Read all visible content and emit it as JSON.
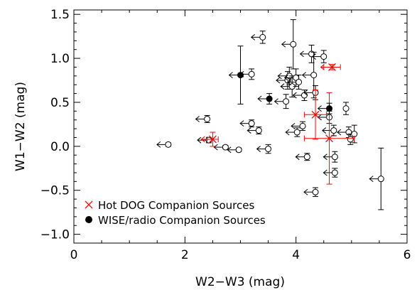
{
  "chart_data": {
    "type": "scatter",
    "xlabel": "W2−W3 (mag)",
    "ylabel": "W1−W2 (mag)",
    "xlim": [
      0,
      6
    ],
    "ylim": [
      -1.1,
      1.55
    ],
    "x_ticks": [
      0,
      2,
      4,
      6
    ],
    "y_ticks": [
      -1.0,
      -0.5,
      0.0,
      0.5,
      1.0,
      1.5
    ],
    "x_tick_labels": [
      "0",
      "2",
      "4",
      "6"
    ],
    "y_tick_labels": [
      "−1.0",
      "−0.5",
      "0.0",
      "0.5",
      "1.0",
      "1.5"
    ],
    "grid": false,
    "legend_position": "bottom-left",
    "colors": {
      "hot_dog": "#ff0000",
      "wise_radio": "#000000",
      "background": "#000000"
    },
    "series": [
      {
        "name": "",
        "marker": "open-circle",
        "points": [
          {
            "x": 1.7,
            "y": 0.02,
            "yerr": 0.02,
            "upper_limit": true
          },
          {
            "x": 2.43,
            "y": 0.07,
            "yerr": 0.03,
            "upper_limit": true
          },
          {
            "x": 2.4,
            "y": 0.31,
            "yerr": 0.04,
            "upper_limit": true
          },
          {
            "x": 2.73,
            "y": -0.01,
            "yerr": 0.02,
            "upper_limit": true
          },
          {
            "x": 2.97,
            "y": -0.04,
            "yerr": 0.02,
            "upper_limit": true
          },
          {
            "x": 3.2,
            "y": 0.82,
            "yerr": 0.06,
            "upper_limit": true
          },
          {
            "x": 3.2,
            "y": 0.26,
            "yerr": 0.04,
            "upper_limit": true
          },
          {
            "x": 3.33,
            "y": 0.18,
            "yerr": 0.04,
            "upper_limit": true
          },
          {
            "x": 3.4,
            "y": 1.24,
            "yerr": 0.07,
            "upper_limit": true
          },
          {
            "x": 3.5,
            "y": -0.03,
            "yerr": 0.05,
            "upper_limit": true
          },
          {
            "x": 3.82,
            "y": 0.51,
            "yerr": 0.08,
            "upper_limit": true
          },
          {
            "x": 3.85,
            "y": 0.75,
            "yerr": 0.1,
            "upper_limit": true
          },
          {
            "x": 3.88,
            "y": 0.8,
            "yerr": 0.1,
            "upper_limit": true
          },
          {
            "x": 3.93,
            "y": 0.68,
            "yerr": 0.12,
            "upper_limit": true
          },
          {
            "x": 3.95,
            "y": 1.16,
            "yerr": 0.28,
            "upper_limit": true
          },
          {
            "x": 4.0,
            "y": 0.78,
            "yerr": 0.1,
            "upper_limit": true
          },
          {
            "x": 4.05,
            "y": 0.73,
            "yerr": 0.08,
            "upper_limit": true
          },
          {
            "x": 4.02,
            "y": 0.16,
            "yerr": 0.05,
            "upper_limit": true
          },
          {
            "x": 4.12,
            "y": 0.23,
            "yerr": 0.05,
            "upper_limit": true
          },
          {
            "x": 4.15,
            "y": 0.58,
            "yerr": 0.06,
            "upper_limit": true
          },
          {
            "x": 4.2,
            "y": -0.12,
            "yerr": 0.04,
            "upper_limit": true
          },
          {
            "x": 4.28,
            "y": 1.05,
            "yerr": 0.1,
            "upper_limit": true
          },
          {
            "x": 4.32,
            "y": 0.81,
            "yerr": 0.26,
            "upper_limit": true
          },
          {
            "x": 4.35,
            "y": 0.61,
            "yerr": 0.08,
            "upper_limit": true
          },
          {
            "x": 4.35,
            "y": -0.52,
            "yerr": 0.05,
            "upper_limit": true
          },
          {
            "x": 4.5,
            "y": 1.02,
            "yerr": 0.07,
            "upper_limit": true
          },
          {
            "x": 4.6,
            "y": 0.33,
            "yerr": 0.07,
            "upper_limit": true
          },
          {
            "x": 4.68,
            "y": 0.18,
            "yerr": 0.06,
            "upper_limit": true
          },
          {
            "x": 4.7,
            "y": -0.12,
            "yerr": 0.06,
            "upper_limit": true
          },
          {
            "x": 4.7,
            "y": -0.3,
            "yerr": 0.05,
            "upper_limit": true
          },
          {
            "x": 4.9,
            "y": 0.43,
            "yerr": 0.07,
            "upper_limit": false
          },
          {
            "x": 4.95,
            "y": 0.16,
            "yerr": 0.06,
            "upper_limit": true
          },
          {
            "x": 4.98,
            "y": 0.08,
            "yerr": 0.06,
            "upper_limit": false
          },
          {
            "x": 5.05,
            "y": 0.14,
            "yerr": 0.1,
            "upper_limit": false
          },
          {
            "x": 5.53,
            "y": -0.37,
            "yerr": 0.35,
            "upper_limit": true
          }
        ]
      },
      {
        "name": "Hot DOG Companion Sources",
        "marker": "x",
        "points": [
          {
            "x": 2.5,
            "y": 0.08,
            "xerr": 0.1,
            "yerr": 0.08,
            "upper_limit": true
          },
          {
            "x": 4.35,
            "y": 0.36,
            "xerr": 0.2,
            "yerr": 0.28,
            "upper_limit": false
          },
          {
            "x": 4.6,
            "y": 0.09,
            "xerr": 0.45,
            "yerr": 0.52,
            "upper_limit": false
          },
          {
            "x": 4.65,
            "y": 0.9,
            "xerr": 0.15,
            "yerr": 0.03,
            "upper_limit": true
          }
        ]
      },
      {
        "name": "WISE/radio Companion Sources",
        "marker": "filled-circle",
        "points": [
          {
            "x": 3.0,
            "y": 0.81,
            "yerr": 0.33,
            "upper_limit": true
          },
          {
            "x": 3.52,
            "y": 0.54,
            "yerr": 0.06,
            "upper_limit": true
          },
          {
            "x": 4.6,
            "y": 0.43,
            "yerr": 0.06,
            "upper_limit": true
          }
        ]
      }
    ]
  }
}
